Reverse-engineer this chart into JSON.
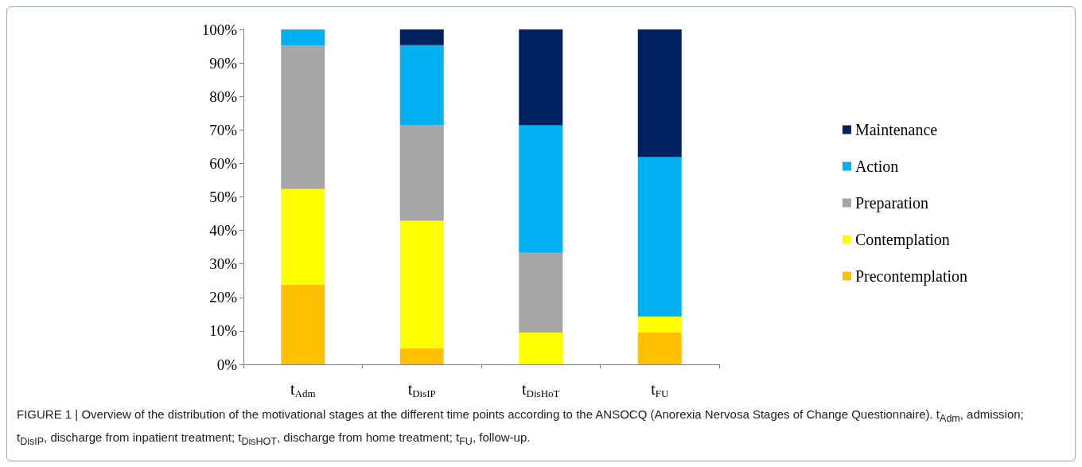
{
  "chart_data": {
    "type": "bar",
    "stacked": true,
    "categories": [
      "t$_{Adm}$",
      "t$_{DisIP}$",
      "t$_{DisHoT}$",
      "t$_{FU}$"
    ],
    "series": [
      {
        "name": "Precontemplation",
        "color": "#ffc000",
        "values": [
          23.8,
          4.8,
          0,
          9.5
        ]
      },
      {
        "name": "Contemplation",
        "color": "#ffff00",
        "values": [
          28.6,
          38.1,
          9.5,
          4.8
        ]
      },
      {
        "name": "Preparation",
        "color": "#a6a6a6",
        "values": [
          42.8,
          28.6,
          23.8,
          0
        ]
      },
      {
        "name": "Action",
        "color": "#00b0f0",
        "values": [
          4.8,
          23.8,
          38.1,
          47.6
        ]
      },
      {
        "name": "Maintenance",
        "color": "#002060",
        "values": [
          0,
          4.7,
          28.6,
          38.1
        ]
      }
    ],
    "ylim": [
      0,
      100
    ],
    "yticks": [
      {
        "value": 0,
        "label": "0%"
      },
      {
        "value": 10,
        "label": "10%"
      },
      {
        "value": 20,
        "label": "20%"
      },
      {
        "value": 30,
        "label": "30%"
      },
      {
        "value": 40,
        "label": "40%"
      },
      {
        "value": 50,
        "label": "50%"
      },
      {
        "value": 60,
        "label": "60%"
      },
      {
        "value": 70,
        "label": "70%"
      },
      {
        "value": 80,
        "label": "80%"
      },
      {
        "value": 90,
        "label": "90%"
      },
      {
        "value": 100,
        "label": "100%"
      }
    ],
    "grid": false,
    "legend": "right",
    "annotations": [
      "FIGURE 1 | Overview of the distribution of the motivational stages at the different time points according to the ANSOCQ (Anorexia Nervosa Stages of Change Questionnaire). t$_{Adm}$, admission; t$_{DisIP}$, discharge from inpatient treatment; t$_{DisHOT}$, discharge from home treatment; t$_{FU}$, follow-up."
    ]
  }
}
